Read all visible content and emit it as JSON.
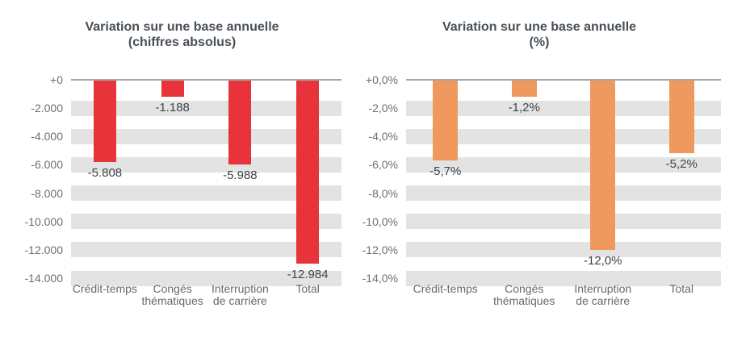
{
  "colors": {
    "band": "#e3e3e3",
    "axis_line": "#a6a6a6",
    "tick_label": "#6d6e70",
    "category_label": "#66686b",
    "data_label": "#3f4245",
    "title": "#474f57",
    "bar_red": "#e8333a",
    "bar_orange": "#f0995e"
  },
  "chart_data": [
    {
      "type": "bar",
      "title": "Variation sur une base annuelle (chiffres absolus)",
      "title_lines": [
        "Variation sur une base annuelle",
        "(chiffres absolus)"
      ],
      "categories": [
        "Crédit-temps",
        "Congés\nthématiques",
        "Interruption\nde carrière",
        "Total"
      ],
      "values": [
        -5808,
        -1188,
        -5988,
        -12984
      ],
      "value_labels": [
        "-5.808",
        "-1.188",
        "-5.988",
        "-12.984"
      ],
      "ylim": [
        0,
        -14000
      ],
      "tick_step": -2000,
      "tick_labels": [
        "+0",
        "-2.000",
        "-4.000",
        "-6.000",
        "-8.000",
        "-10.000",
        "-12.000",
        "-14.000"
      ],
      "bar_color": "#e8333a",
      "grid": "horizontal-bands",
      "legend": "none"
    },
    {
      "type": "bar",
      "title": "Variation sur une base annuelle (%)",
      "title_lines": [
        "Variation sur une base annuelle",
        "(%)"
      ],
      "categories": [
        "Crédit-temps",
        "Congés\nthématiques",
        "Interruption\nde carrière",
        "Total"
      ],
      "values": [
        -5.7,
        -1.2,
        -12.0,
        -5.2
      ],
      "value_labels": [
        "-5,7%",
        "-1,2%",
        "-12,0%",
        "-5,2%"
      ],
      "ylim": [
        0,
        -14
      ],
      "tick_step": -2,
      "tick_labels": [
        "+0,0%",
        "-2,0%",
        "-4,0%",
        "-6,0%",
        "-8,0%",
        "-10,0%",
        "-12,0%",
        "-14,0%"
      ],
      "bar_color": "#f0995e",
      "grid": "horizontal-bands",
      "legend": "none"
    }
  ]
}
